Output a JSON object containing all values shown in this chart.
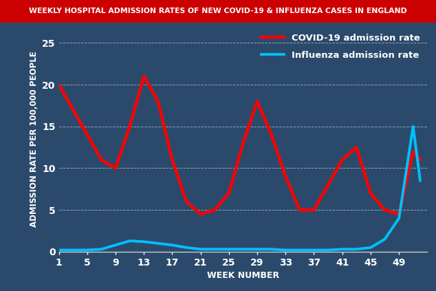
{
  "title": "WEEKLY HOSPITAL ADMISSION RATES OF NEW COVID-19 & INFLUENZA CASES IN ENGLAND",
  "title_bg_color": "#cc0000",
  "title_text_color": "#ffffff",
  "xlabel": "WEEK NUMBER",
  "ylabel": "ADMISSION RATE PER 100,000 PEOPLE",
  "xlabel_color": "#ffffff",
  "ylabel_color": "#ffffff",
  "background_color": "#2b4a6b",
  "plot_bg_alpha": 0.0,
  "grid_color": "#ffffff",
  "tick_color": "#ffffff",
  "ylim": [
    0,
    27
  ],
  "yticks": [
    0,
    5,
    10,
    15,
    20,
    25
  ],
  "xticks": [
    1,
    5,
    9,
    13,
    17,
    21,
    25,
    29,
    33,
    37,
    41,
    45,
    49
  ],
  "covid_color": "#ff0000",
  "flu_color": "#00bfff",
  "covid_linewidth": 3.2,
  "flu_linewidth": 2.8,
  "covid_weeks": [
    1,
    3,
    5,
    7,
    9,
    11,
    13,
    15,
    17,
    19,
    21,
    23,
    25,
    27,
    29,
    31,
    33,
    35,
    37,
    39,
    41,
    43,
    45,
    47,
    49,
    51,
    52
  ],
  "covid_values": [
    20,
    17,
    14,
    11,
    10,
    15,
    21,
    18,
    11,
    6,
    4.5,
    5,
    7,
    13,
    18,
    14,
    9,
    5,
    5,
    8,
    11,
    12.5,
    7,
    5,
    4.5,
    12,
    11
  ],
  "flu_weeks": [
    1,
    3,
    5,
    7,
    9,
    11,
    13,
    15,
    17,
    19,
    21,
    23,
    25,
    27,
    29,
    31,
    33,
    35,
    37,
    39,
    41,
    43,
    45,
    47,
    49,
    51,
    52
  ],
  "flu_values": [
    0.2,
    0.2,
    0.2,
    0.3,
    0.8,
    1.3,
    1.2,
    1.0,
    0.8,
    0.5,
    0.3,
    0.3,
    0.3,
    0.3,
    0.3,
    0.3,
    0.2,
    0.2,
    0.2,
    0.2,
    0.3,
    0.3,
    0.5,
    1.5,
    4,
    15,
    8.5
  ],
  "legend_covid_label": "COVID-19 admission rate",
  "legend_flu_label": "Influenza admission rate",
  "legend_text_color": "#ffffff",
  "axis_line_color": "#cccccc",
  "tick_label_fontsize": 10,
  "axis_label_fontsize": 9,
  "legend_fontsize": 9.5,
  "title_fontsize": 7.8
}
